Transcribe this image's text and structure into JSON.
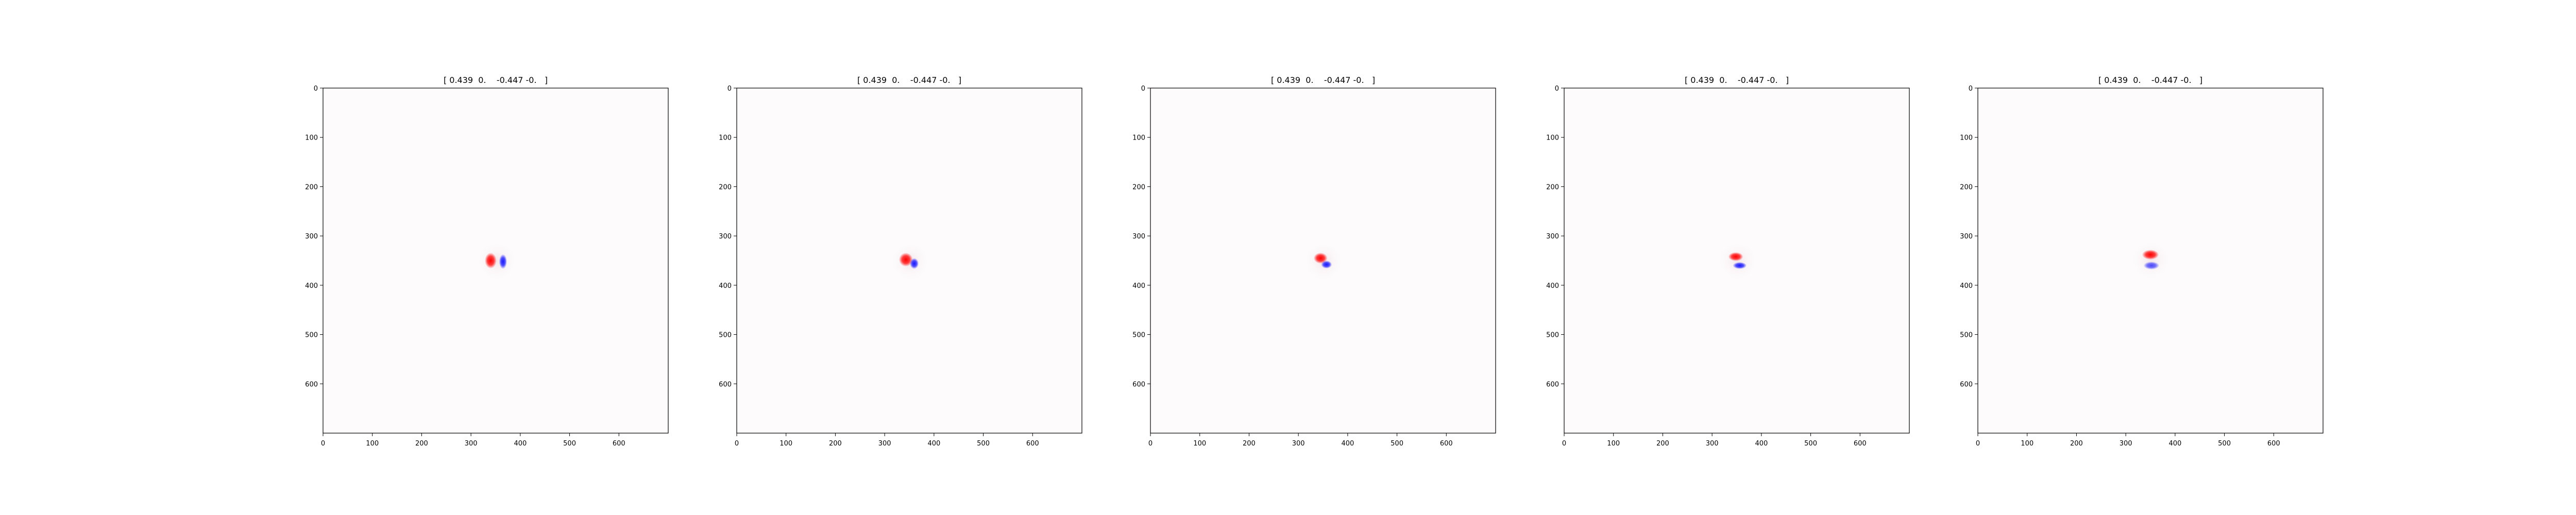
{
  "chart_data": [
    {
      "type": "heatmap",
      "title": "[ 0.439  0.    -0.447 -0.   ]",
      "xlim": [
        0,
        700
      ],
      "ylim": [
        700,
        0
      ],
      "y_inverted": true,
      "xticks": [
        0,
        100,
        200,
        300,
        400,
        500,
        600
      ],
      "yticks": [
        0,
        100,
        200,
        300,
        400,
        500,
        600
      ],
      "colormap": "bwr",
      "colors": {
        "positive": "#ff0000",
        "negative": "#0000ff",
        "zero": "#ffffff"
      },
      "blobs": [
        {
          "sign": "positive",
          "x": 340,
          "y": 350,
          "rx": 12,
          "ry": 16,
          "strength": 1.0
        },
        {
          "sign": "negative",
          "x": 365,
          "y": 352,
          "rx": 8,
          "ry": 15,
          "strength": 0.9
        }
      ]
    },
    {
      "type": "heatmap",
      "title": "[ 0.439  0.    -0.447 -0.   ]",
      "xlim": [
        0,
        700
      ],
      "ylim": [
        700,
        0
      ],
      "y_inverted": true,
      "xticks": [
        0,
        100,
        200,
        300,
        400,
        500,
        600
      ],
      "yticks": [
        0,
        100,
        200,
        300,
        400,
        500,
        600
      ],
      "colormap": "bwr",
      "colors": {
        "positive": "#ff0000",
        "negative": "#0000ff",
        "zero": "#ffffff"
      },
      "blobs": [
        {
          "sign": "positive",
          "x": 343,
          "y": 348,
          "rx": 14,
          "ry": 14,
          "strength": 1.0
        },
        {
          "sign": "negative",
          "x": 360,
          "y": 356,
          "rx": 9,
          "ry": 11,
          "strength": 0.9
        }
      ]
    },
    {
      "type": "heatmap",
      "title": "[ 0.439  0.    -0.447 -0.   ]",
      "xlim": [
        0,
        700
      ],
      "ylim": [
        700,
        0
      ],
      "y_inverted": true,
      "xticks": [
        0,
        100,
        200,
        300,
        400,
        500,
        600
      ],
      "yticks": [
        0,
        100,
        200,
        300,
        400,
        500,
        600
      ],
      "colormap": "bwr",
      "colors": {
        "positive": "#ff0000",
        "negative": "#0000ff",
        "zero": "#ffffff"
      },
      "blobs": [
        {
          "sign": "positive",
          "x": 345,
          "y": 345,
          "rx": 14,
          "ry": 11,
          "strength": 1.0
        },
        {
          "sign": "negative",
          "x": 357,
          "y": 358,
          "rx": 11,
          "ry": 8,
          "strength": 0.9
        }
      ]
    },
    {
      "type": "heatmap",
      "title": "[ 0.439  0.    -0.447 -0.   ]",
      "xlim": [
        0,
        700
      ],
      "ylim": [
        700,
        0
      ],
      "y_inverted": true,
      "xticks": [
        0,
        100,
        200,
        300,
        400,
        500,
        600
      ],
      "yticks": [
        0,
        100,
        200,
        300,
        400,
        500,
        600
      ],
      "colormap": "bwr",
      "colors": {
        "positive": "#ff0000",
        "negative": "#0000ff",
        "zero": "#ffffff"
      },
      "blobs": [
        {
          "sign": "positive",
          "x": 348,
          "y": 342,
          "rx": 15,
          "ry": 9,
          "strength": 1.0
        },
        {
          "sign": "negative",
          "x": 356,
          "y": 360,
          "rx": 14,
          "ry": 7,
          "strength": 0.9
        }
      ]
    },
    {
      "type": "heatmap",
      "title": "[ 0.439  0.    -0.447 -0.   ]",
      "xlim": [
        0,
        700
      ],
      "ylim": [
        700,
        0
      ],
      "y_inverted": true,
      "xticks": [
        0,
        100,
        200,
        300,
        400,
        500,
        600
      ],
      "yticks": [
        0,
        100,
        200,
        300,
        400,
        500,
        600
      ],
      "colormap": "bwr",
      "colors": {
        "positive": "#ff0000",
        "negative": "#0000ff",
        "zero": "#ffffff"
      },
      "blobs": [
        {
          "sign": "positive",
          "x": 350,
          "y": 338,
          "rx": 17,
          "ry": 10,
          "strength": 1.0
        },
        {
          "sign": "negative",
          "x": 352,
          "y": 360,
          "rx": 16,
          "ry": 8,
          "strength": 0.7
        }
      ]
    }
  ]
}
